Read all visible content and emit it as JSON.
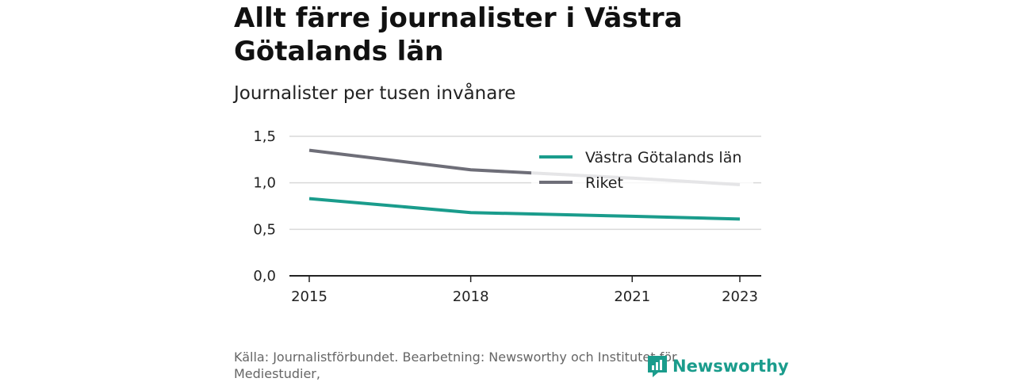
{
  "header": {
    "title": "Allt färre journalister i Västra Götalands län",
    "subtitle": "Journalister per tusen invånare"
  },
  "chart_data": {
    "type": "line",
    "title": "Allt färre journalister i Västra Götalands län",
    "subtitle": "Journalister per tusen invånare",
    "x": [
      2015,
      2018,
      2021,
      2023
    ],
    "x_tick_labels": [
      "2015",
      "2018",
      "2021",
      "2023"
    ],
    "y_tick_labels": [
      "0,0",
      "0,5",
      "1,0",
      "1,5"
    ],
    "ylim": [
      0,
      1.5
    ],
    "y_ticks": [
      0,
      0.5,
      1.0,
      1.5
    ],
    "grid": true,
    "legend_position": "top-right",
    "series": [
      {
        "name": "Västra Götalands län",
        "color": "#1a9c8c",
        "values": [
          0.83,
          0.68,
          0.64,
          0.61
        ]
      },
      {
        "name": "Riket",
        "color": "#6e6e78",
        "values": [
          1.35,
          1.14,
          1.05,
          0.98
        ]
      }
    ]
  },
  "footer": {
    "source": "Källa: Journalistförbundet. Bearbetning: Newsworthy och Institutet för Mediestudier,",
    "brand": "Newsworthy",
    "brand_color": "#1a9c8c",
    "brand_icon": "newsworthy-logo-icon"
  }
}
